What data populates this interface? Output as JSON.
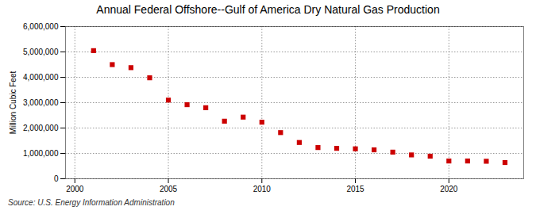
{
  "chart_data": {
    "type": "scatter",
    "title": "Annual Federal Offshore--Gulf of America Dry Natural Gas Production",
    "ylabel": "Million Cubic Feet",
    "source": "Source: U.S. Energy Information Administration",
    "x": [
      2001,
      2002,
      2003,
      2004,
      2005,
      2006,
      2007,
      2008,
      2009,
      2010,
      2011,
      2012,
      2013,
      2014,
      2015,
      2016,
      2017,
      2018,
      2019,
      2020,
      2021,
      2022,
      2023
    ],
    "values": [
      5050000,
      4500000,
      4380000,
      3980000,
      3100000,
      2920000,
      2800000,
      2270000,
      2430000,
      2230000,
      1820000,
      1430000,
      1230000,
      1200000,
      1180000,
      1140000,
      1050000,
      940000,
      890000,
      700000,
      700000,
      690000,
      640000
    ],
    "color": "#cc0000",
    "marker": "square",
    "xlim": [
      1999.5,
      2024
    ],
    "xticks": [
      2000,
      2005,
      2010,
      2015,
      2020
    ],
    "ylim": [
      0,
      6000000
    ],
    "yticks": [
      0,
      {
        "value": 1000000,
        "label": "1,000,000"
      },
      {
        "value": 2000000,
        "label": "2,000,000"
      },
      {
        "value": 3000000,
        "label": "3,000,000"
      },
      {
        "value": 4000000,
        "label": "4,000,000"
      },
      {
        "value": 5000000,
        "label": "5,000,000"
      },
      {
        "value": 6000000,
        "label": "6,000,000"
      }
    ],
    "grid": true
  }
}
